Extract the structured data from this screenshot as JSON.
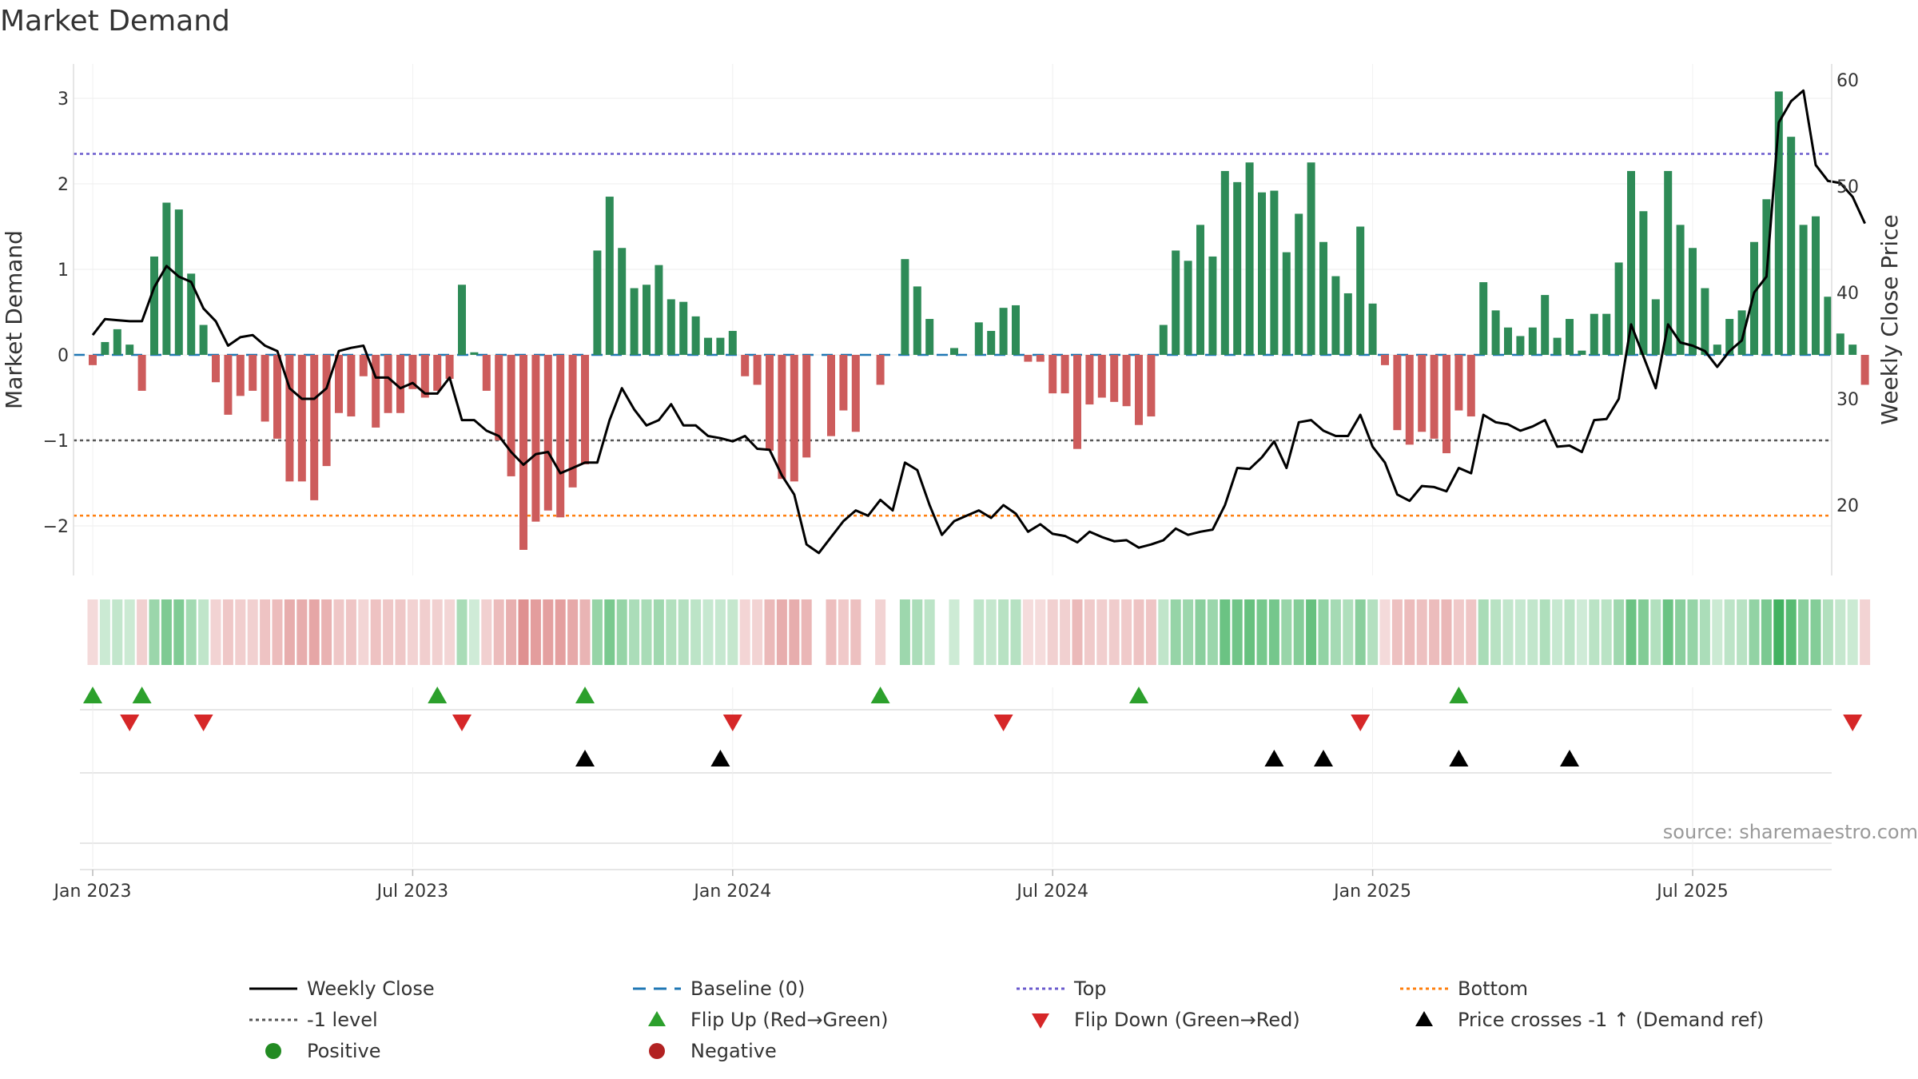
{
  "chart_data": {
    "type": "bar+line",
    "title": "Market Demand",
    "ylabel_left": "Market Demand",
    "ylabel_right": "Weekly Close Price",
    "source": "source: sharemaestro.com",
    "ylim_left": [
      -2.6,
      3.4
    ],
    "ylim_right": [
      13,
      60
    ],
    "yticks_left": [
      3,
      2,
      1,
      0,
      -1,
      -2
    ],
    "ytick_labels_left": [
      "3",
      "2",
      "1",
      "0",
      "−1",
      "−2"
    ],
    "yticks_right": [
      60,
      50,
      40,
      30,
      20
    ],
    "ytick_labels_right": [
      "60",
      "50",
      "40",
      "30",
      "20"
    ],
    "x_tick_weeks": [
      0,
      26,
      52,
      78,
      104,
      130
    ],
    "x_tick_labels": [
      "Jan 2023",
      "Jul 2023",
      "Jan 2024",
      "Jul 2024",
      "Jan 2025",
      "Jul 2025"
    ],
    "reference_lines": {
      "top": 2.35,
      "minus_one": -1,
      "bottom": -1.88,
      "baseline": 0
    },
    "colors": {
      "positive": "#2e8b57",
      "negative": "#cd5c5c",
      "close": "#000000",
      "baseline": "#1f77b4",
      "top": "#6a5acd",
      "minus_one": "#555555",
      "bottom": "#ff7f0e",
      "flip_up": "#2ca02c",
      "flip_down": "#d62728",
      "cross": "#000000",
      "positive_dot": "#228b22",
      "negative_dot": "#b22222"
    },
    "demand": [
      -0.12,
      0.15,
      0.3,
      0.12,
      -0.42,
      1.15,
      1.78,
      1.7,
      0.95,
      0.35,
      -0.32,
      -0.7,
      -0.48,
      -0.42,
      -0.78,
      -0.98,
      -1.48,
      -1.48,
      -1.7,
      -1.3,
      -0.68,
      -0.72,
      -0.25,
      -0.85,
      -0.68,
      -0.68,
      -0.4,
      -0.5,
      -0.42,
      -0.28,
      0.82,
      0.03,
      -0.42,
      -1.0,
      -1.42,
      -2.28,
      -1.95,
      -1.82,
      -1.9,
      -1.55,
      -1.28,
      1.22,
      1.85,
      1.25,
      0.78,
      0.82,
      1.05,
      0.65,
      0.62,
      0.45,
      0.2,
      0.2,
      0.28,
      -0.25,
      -0.35,
      -1.12,
      -1.45,
      -1.48,
      -1.2,
      0.0,
      -0.95,
      -0.65,
      -0.9,
      0.0,
      -0.35,
      0.0,
      1.12,
      0.8,
      0.42,
      0.0,
      0.08,
      0.0,
      0.38,
      0.28,
      0.55,
      0.58,
      -0.08,
      -0.08,
      -0.45,
      -0.45,
      -1.1,
      -0.58,
      -0.5,
      -0.55,
      -0.6,
      -0.82,
      -0.72,
      0.35,
      1.22,
      1.1,
      1.52,
      1.15,
      2.15,
      2.02,
      2.25,
      1.9,
      1.92,
      1.2,
      1.65,
      2.25,
      1.32,
      0.92,
      0.72,
      1.5,
      0.6,
      -0.12,
      -0.88,
      -1.05,
      -0.9,
      -0.98,
      -1.15,
      -0.65,
      -0.72,
      0.85,
      0.52,
      0.32,
      0.22,
      0.32,
      0.7,
      0.2,
      0.42,
      0.05,
      0.48,
      0.48,
      1.08,
      2.15,
      1.68,
      0.65,
      2.15,
      1.52,
      1.25,
      0.78,
      0.12,
      0.42,
      0.52,
      1.32,
      1.82,
      3.08,
      2.55,
      1.52,
      1.62,
      0.68,
      0.25,
      0.12,
      -0.35
    ],
    "close": [
      36,
      37.5,
      37.4,
      37.3,
      37.3,
      40.5,
      42.5,
      41.5,
      41,
      38.5,
      37.3,
      35,
      35.8,
      36,
      35,
      34.5,
      31,
      30,
      30,
      31,
      34.5,
      34.8,
      35,
      32,
      32,
      31,
      31.5,
      30.5,
      30.5,
      32,
      28,
      28,
      27,
      26.5,
      25,
      23.8,
      24.8,
      25,
      23,
      23.5,
      24,
      24,
      28,
      31,
      29,
      27.5,
      28,
      29.5,
      27.5,
      27.5,
      26.5,
      26.3,
      26,
      26.5,
      25.3,
      25.2,
      22.8,
      21,
      16.3,
      15.5,
      17,
      18.5,
      19.5,
      19,
      20.5,
      19.5,
      24,
      23.3,
      20,
      17.2,
      18.5,
      19,
      19.5,
      18.8,
      20,
      19.2,
      17.5,
      18.2,
      17.3,
      17.1,
      16.5,
      17.5,
      17,
      16.6,
      16.7,
      16,
      16.3,
      16.7,
      17.8,
      17.2,
      17.5,
      17.7,
      20,
      23.5,
      23.4,
      24.5,
      26,
      23.5,
      27.8,
      28,
      27,
      26.5,
      26.5,
      28.5,
      25.5,
      24,
      21,
      20.4,
      21.8,
      21.7,
      21.3,
      23.5,
      23,
      28.5,
      27.8,
      27.6,
      27,
      27.4,
      28,
      25.5,
      25.6,
      25,
      28,
      28.1,
      30,
      37,
      34,
      31,
      37,
      35.3,
      35,
      34.5,
      33,
      34.5,
      35.5,
      40,
      41.5,
      56,
      58,
      59,
      52,
      50.5,
      50.3,
      49,
      46.5
    ],
    "flip_up_weeks": [
      0,
      4,
      28,
      40,
      64,
      85,
      111
    ],
    "flip_down_weeks": [
      3,
      9,
      30,
      52,
      74,
      103,
      143
    ],
    "price_cross_weeks": [
      40,
      51,
      96,
      100,
      111,
      120
    ],
    "legend": [
      {
        "label": "Weekly Close",
        "style": "close-line"
      },
      {
        "label": "Baseline (0)",
        "style": "baseline-line"
      },
      {
        "label": "Top",
        "style": "top-line"
      },
      {
        "label": "Bottom",
        "style": "bottom-line"
      },
      {
        "label": "-1 level",
        "style": "minus-one-line"
      },
      {
        "label": "Flip Up (Red→Green)",
        "style": "flip-up-marker"
      },
      {
        "label": "Flip Down (Green→Red)",
        "style": "flip-down-marker"
      },
      {
        "label": "Price crosses -1 ↑ (Demand ref)",
        "style": "cross-marker"
      },
      {
        "label": "Positive",
        "style": "positive-dot"
      },
      {
        "label": "Negative",
        "style": "negative-dot"
      }
    ]
  }
}
